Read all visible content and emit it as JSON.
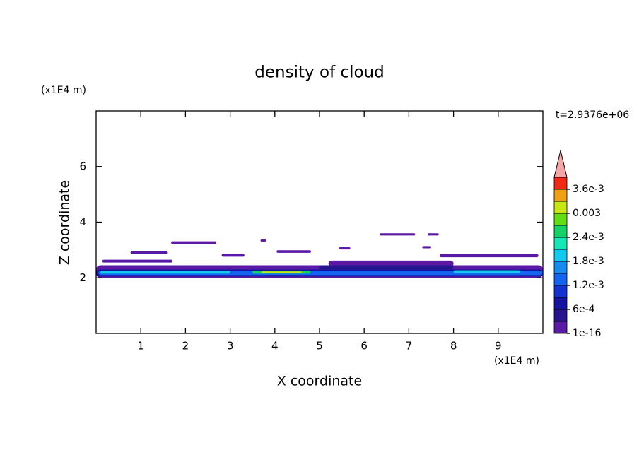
{
  "chart_data": {
    "type": "contour",
    "title": "density of cloud",
    "x_label": "X coordinate",
    "y_label": "Z coordinate",
    "x_unit": "(x1E4 m)",
    "y_unit": "(x1E4 m)",
    "annotation": "t=2.9376e+06",
    "xlim": [
      0,
      10
    ],
    "ylim": [
      0,
      8
    ],
    "xticks": [
      1,
      2,
      3,
      4,
      5,
      6,
      7,
      8,
      9
    ],
    "yticks": [
      2,
      4,
      6
    ],
    "levels": [
      1e-16,
      0.0003,
      0.0006,
      0.0009,
      0.0012,
      0.0015,
      0.0018,
      0.0021,
      0.0024,
      0.0027,
      0.003,
      0.0033,
      0.0036
    ],
    "level_colors": [
      "#5a1aa6",
      "#28148c",
      "#1414a0",
      "#1432d2",
      "#1464f0",
      "#148cf0",
      "#14c8f0",
      "#14e6b4",
      "#14d264",
      "#64dc14",
      "#c8e614",
      "#f0a014",
      "#f02814"
    ],
    "extend_color": "#f4a7a7",
    "colorbar_ticks": [
      {
        "value": 1e-16,
        "label": "1e-16"
      },
      {
        "value": 0.0006,
        "label": "6e-4"
      },
      {
        "value": 0.0012,
        "label": "1.2e-3"
      },
      {
        "value": 0.0018,
        "label": "1.8e-3"
      },
      {
        "value": 0.0024,
        "label": "2.4e-3"
      },
      0.003,
      {
        "value": 0.0036,
        "label": "3.6e-3"
      }
    ],
    "regions": [
      {
        "x": [
          0,
          10
        ],
        "z": [
          2.0,
          2.45
        ],
        "value": 1e-16
      },
      {
        "x": [
          0.14,
          1.71
        ],
        "z": [
          2.55,
          2.65
        ],
        "value": 1e-16
      },
      {
        "x": [
          5.2,
          8.0
        ],
        "z": [
          2.4,
          2.62
        ],
        "value": 1e-16
      },
      {
        "x": [
          7.69,
          9.9
        ],
        "z": [
          2.74,
          2.85
        ],
        "value": 1e-16
      },
      {
        "x": [
          0.77,
          1.59
        ],
        "z": [
          2.86,
          2.95
        ],
        "value": 1e-16
      },
      {
        "x": [
          1.68,
          2.69
        ],
        "z": [
          3.22,
          3.31
        ],
        "value": 1e-16
      },
      {
        "x": [
          2.81,
          3.32
        ],
        "z": [
          2.76,
          2.85
        ],
        "value": 1e-16
      },
      {
        "x": [
          3.68,
          3.8
        ],
        "z": [
          3.3,
          3.38
        ],
        "value": 1e-16
      },
      {
        "x": [
          4.04,
          4.81
        ],
        "z": [
          2.9,
          2.99
        ],
        "value": 1e-16
      },
      {
        "x": [
          5.44,
          5.69
        ],
        "z": [
          3.02,
          3.1
        ],
        "value": 1e-16
      },
      {
        "x": [
          6.35,
          7.14
        ],
        "z": [
          3.52,
          3.6
        ],
        "value": 1e-16
      },
      {
        "x": [
          7.42,
          7.67
        ],
        "z": [
          3.52,
          3.6
        ],
        "value": 1e-16
      },
      {
        "x": [
          7.3,
          7.5
        ],
        "z": [
          3.06,
          3.14
        ],
        "value": 1e-16
      },
      {
        "x": [
          5.0,
          8.0
        ],
        "z": [
          2.3,
          2.45
        ],
        "value": 0.0003
      },
      {
        "x": [
          0,
          10
        ],
        "z": [
          2.05,
          2.3
        ],
        "value": 0.0006
      },
      {
        "x": [
          0.05,
          10
        ],
        "z": [
          2.1,
          2.26
        ],
        "value": 0.0012
      },
      {
        "x": [
          0.1,
          3.0
        ],
        "z": [
          2.15,
          2.25
        ],
        "value": 0.0018
      },
      {
        "x": [
          8.0,
          9.5
        ],
        "z": [
          2.17,
          2.27
        ],
        "value": 0.0018
      },
      {
        "x": [
          3.5,
          4.8
        ],
        "z": [
          2.15,
          2.25
        ],
        "value": 0.0024
      },
      {
        "x": [
          3.7,
          4.6
        ],
        "z": [
          2.17,
          2.23
        ],
        "value": 0.003
      }
    ]
  }
}
